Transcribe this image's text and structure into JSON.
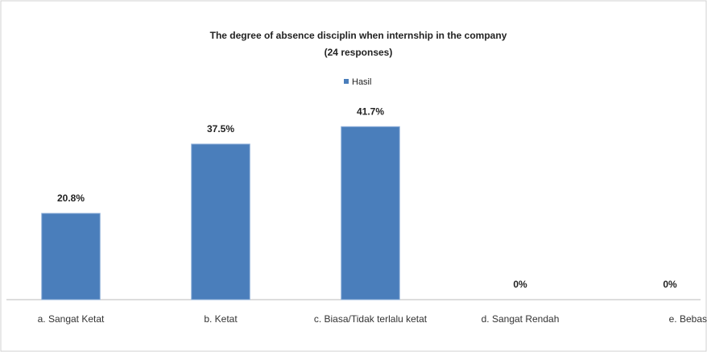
{
  "chart_data": {
    "type": "bar",
    "title": "The degree of absence disciplin when internship in the company",
    "subtitle": "(24 responses)",
    "categories": [
      "a. Sangat Ketat",
      "b. Ketat",
      "c. Biasa/Tidak terlalu ketat",
      "d. Sangat Rendah",
      "e. Bebas"
    ],
    "series": [
      {
        "name": "Hasil",
        "color": "#4a7ebb",
        "values": [
          20.8,
          37.5,
          41.7,
          0,
          0
        ],
        "value_labels": [
          "20.8%",
          "37.5%",
          "41.7%",
          "0%",
          "0%"
        ]
      }
    ],
    "legend": "top"
  }
}
